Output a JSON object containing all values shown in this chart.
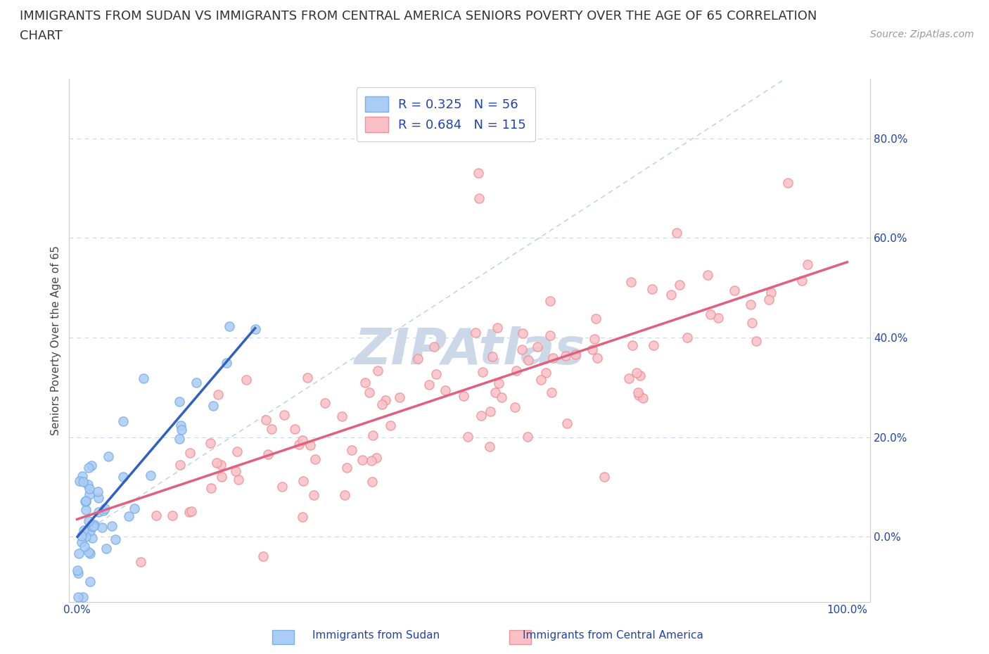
{
  "title_line1": "IMMIGRANTS FROM SUDAN VS IMMIGRANTS FROM CENTRAL AMERICA SENIORS POVERTY OVER THE AGE OF 65 CORRELATION",
  "title_line2": "CHART",
  "source_text": "Source: ZipAtlas.com",
  "ylabel": "Seniors Poverty Over the Age of 65",
  "xlabel_sudan": "Immigrants from Sudan",
  "xlabel_ca": "Immigrants from Central America",
  "r_sudan": 0.325,
  "n_sudan": 56,
  "r_ca": 0.684,
  "n_ca": 115,
  "xlim": [
    -0.01,
    1.03
  ],
  "ylim": [
    -0.13,
    0.92
  ],
  "yticks": [
    0.0,
    0.2,
    0.4,
    0.6,
    0.8
  ],
  "ytick_labels": [
    "0.0%",
    "20.0%",
    "40.0%",
    "60.0%",
    "80.0%"
  ],
  "xticks": [
    0.0,
    1.0
  ],
  "xtick_labels": [
    "0.0%",
    "100.0%"
  ],
  "color_sudan": "#7aaee8",
  "color_sudan_fill": "#aaccf5",
  "color_ca": "#f09090",
  "color_ca_fill": "#fac0c8",
  "color_regression_ca": "#e06080",
  "color_regression_sudan": "#3060c0",
  "color_diagonal": "#8aacdc",
  "color_grid": "#c8d8e8",
  "watermark_color": "#ccd8e8",
  "title_fontsize": 13,
  "axis_label_fontsize": 11,
  "tick_fontsize": 11,
  "legend_fontsize": 13,
  "watermark_fontsize": 52,
  "source_fontsize": 10
}
